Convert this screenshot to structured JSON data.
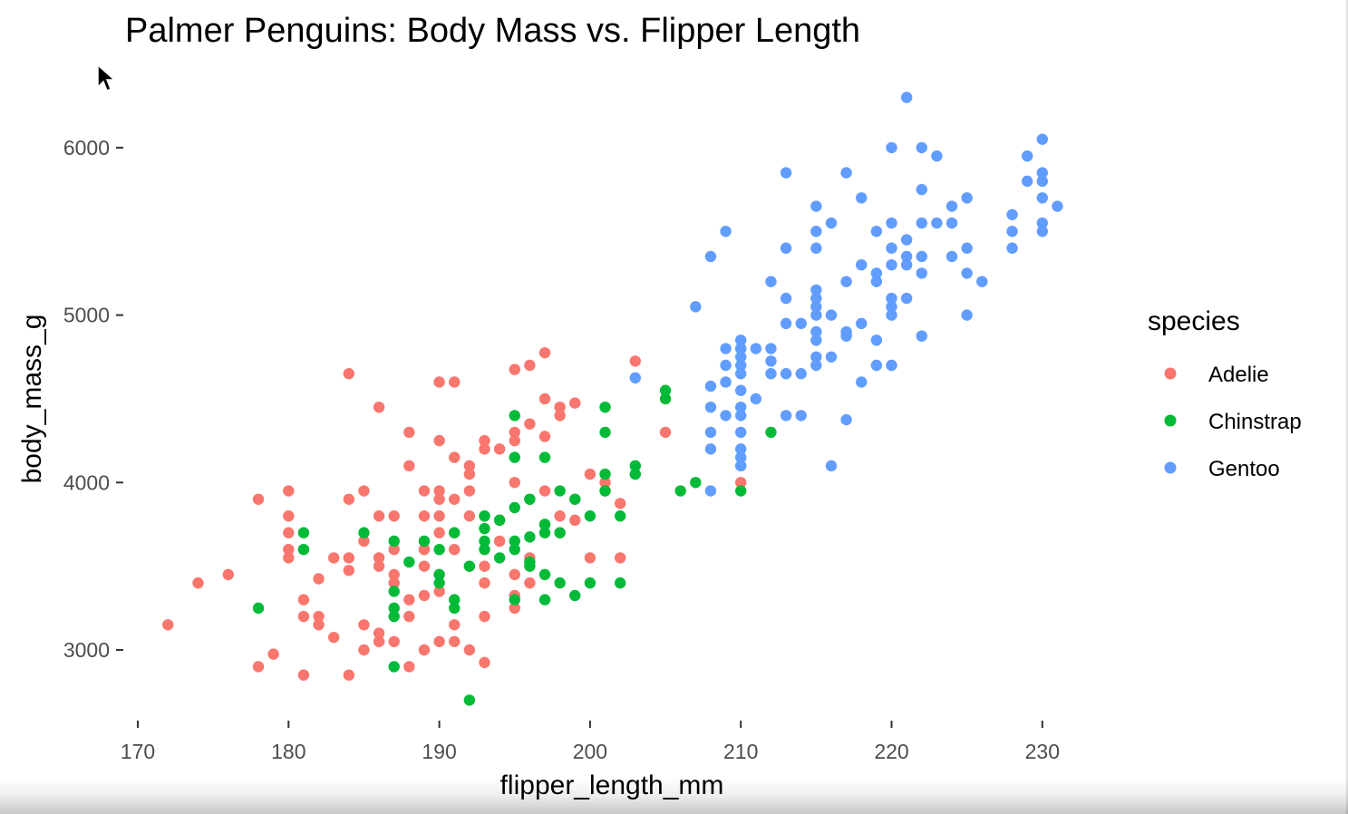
{
  "chart_data": {
    "type": "scatter",
    "title": "Palmer Penguins: Body Mass vs. Flipper Length",
    "xlabel": "flipper_length_mm",
    "ylabel": "body_mass_g",
    "xlim": [
      170,
      232
    ],
    "ylim": [
      2650,
      6350
    ],
    "x_ticks": [
      170,
      180,
      190,
      200,
      210,
      220,
      230
    ],
    "y_ticks": [
      3000,
      4000,
      5000,
      6000
    ],
    "grid": false,
    "legend": {
      "title": "species",
      "position": "right"
    },
    "series": [
      {
        "name": "Adelie",
        "color": "#F8766D",
        "points": [
          [
            172,
            3150
          ],
          [
            174,
            3400
          ],
          [
            176,
            3450
          ],
          [
            178,
            3900
          ],
          [
            178,
            2900
          ],
          [
            179,
            2975
          ],
          [
            180,
            3950
          ],
          [
            180,
            3800
          ],
          [
            180,
            3700
          ],
          [
            180,
            3600
          ],
          [
            180,
            3550
          ],
          [
            181,
            3300
          ],
          [
            181,
            3200
          ],
          [
            181,
            2850
          ],
          [
            182,
            3425
          ],
          [
            182,
            3200
          ],
          [
            182,
            3150
          ],
          [
            183,
            3550
          ],
          [
            183,
            3075
          ],
          [
            184,
            4650
          ],
          [
            184,
            3900
          ],
          [
            184,
            3550
          ],
          [
            184,
            3475
          ],
          [
            184,
            2850
          ],
          [
            185,
            3950
          ],
          [
            185,
            3650
          ],
          [
            185,
            3150
          ],
          [
            185,
            3000
          ],
          [
            186,
            4450
          ],
          [
            186,
            3800
          ],
          [
            186,
            3550
          ],
          [
            186,
            3500
          ],
          [
            186,
            3100
          ],
          [
            186,
            3050
          ],
          [
            187,
            3800
          ],
          [
            187,
            3600
          ],
          [
            187,
            3450
          ],
          [
            187,
            3400
          ],
          [
            187,
            3050
          ],
          [
            188,
            4300
          ],
          [
            188,
            4100
          ],
          [
            188,
            3300
          ],
          [
            188,
            3200
          ],
          [
            188,
            2900
          ],
          [
            189,
            3950
          ],
          [
            189,
            3800
          ],
          [
            189,
            3600
          ],
          [
            189,
            3500
          ],
          [
            189,
            3325
          ],
          [
            189,
            3000
          ],
          [
            190,
            4600
          ],
          [
            190,
            4250
          ],
          [
            190,
            3950
          ],
          [
            190,
            3900
          ],
          [
            190,
            3800
          ],
          [
            190,
            3700
          ],
          [
            190,
            3450
          ],
          [
            190,
            3350
          ],
          [
            190,
            3050
          ],
          [
            191,
            4600
          ],
          [
            191,
            4150
          ],
          [
            191,
            3900
          ],
          [
            191,
            3700
          ],
          [
            191,
            3600
          ],
          [
            191,
            3150
          ],
          [
            191,
            3050
          ],
          [
            192,
            4100
          ],
          [
            192,
            4050
          ],
          [
            192,
            3950
          ],
          [
            192,
            3800
          ],
          [
            192,
            3500
          ],
          [
            192,
            3000
          ],
          [
            193,
            4250
          ],
          [
            193,
            4200
          ],
          [
            193,
            3800
          ],
          [
            193,
            3500
          ],
          [
            193,
            3400
          ],
          [
            193,
            3200
          ],
          [
            193,
            2925
          ],
          [
            194,
            4200
          ],
          [
            194,
            3775
          ],
          [
            194,
            3650
          ],
          [
            195,
            4675
          ],
          [
            195,
            4300
          ],
          [
            195,
            4250
          ],
          [
            195,
            4000
          ],
          [
            195,
            3450
          ],
          [
            195,
            3325
          ],
          [
            195,
            3250
          ],
          [
            196,
            4700
          ],
          [
            196,
            4350
          ],
          [
            196,
            3900
          ],
          [
            196,
            3550
          ],
          [
            196,
            3400
          ],
          [
            197,
            4775
          ],
          [
            197,
            4500
          ],
          [
            197,
            4275
          ],
          [
            197,
            3950
          ],
          [
            197,
            3750
          ],
          [
            198,
            4450
          ],
          [
            198,
            4400
          ],
          [
            198,
            3800
          ],
          [
            198,
            3700
          ],
          [
            199,
            4475
          ],
          [
            199,
            3900
          ],
          [
            199,
            3775
          ],
          [
            200,
            4050
          ],
          [
            200,
            3550
          ],
          [
            201,
            4000
          ],
          [
            201,
            3950
          ],
          [
            202,
            3875
          ],
          [
            202,
            3550
          ],
          [
            203,
            4725
          ],
          [
            205,
            4300
          ],
          [
            210,
            4000
          ]
        ]
      },
      {
        "name": "Chinstrap",
        "color": "#00BA38",
        "points": [
          [
            178,
            3250
          ],
          [
            181,
            3700
          ],
          [
            181,
            3600
          ],
          [
            185,
            3700
          ],
          [
            187,
            3650
          ],
          [
            187,
            3350
          ],
          [
            187,
            3250
          ],
          [
            187,
            3200
          ],
          [
            187,
            2900
          ],
          [
            188,
            3525
          ],
          [
            189,
            3650
          ],
          [
            190,
            3600
          ],
          [
            190,
            3450
          ],
          [
            190,
            3400
          ],
          [
            191,
            3300
          ],
          [
            191,
            3250
          ],
          [
            191,
            3700
          ],
          [
            192,
            3500
          ],
          [
            192,
            2700
          ],
          [
            193,
            3800
          ],
          [
            193,
            3725
          ],
          [
            193,
            3650
          ],
          [
            193,
            3600
          ],
          [
            194,
            3775
          ],
          [
            194,
            3550
          ],
          [
            195,
            4400
          ],
          [
            195,
            4150
          ],
          [
            195,
            3850
          ],
          [
            195,
            3650
          ],
          [
            195,
            3600
          ],
          [
            195,
            3300
          ],
          [
            196,
            3900
          ],
          [
            196,
            3675
          ],
          [
            196,
            3525
          ],
          [
            196,
            3500
          ],
          [
            197,
            4150
          ],
          [
            197,
            3750
          ],
          [
            197,
            3700
          ],
          [
            197,
            3450
          ],
          [
            197,
            3300
          ],
          [
            198,
            3950
          ],
          [
            198,
            3700
          ],
          [
            198,
            3400
          ],
          [
            199,
            3900
          ],
          [
            199,
            3325
          ],
          [
            200,
            3800
          ],
          [
            200,
            3400
          ],
          [
            201,
            4450
          ],
          [
            201,
            4300
          ],
          [
            201,
            4050
          ],
          [
            201,
            3950
          ],
          [
            202,
            3800
          ],
          [
            202,
            3400
          ],
          [
            203,
            4100
          ],
          [
            203,
            4050
          ],
          [
            205,
            4550
          ],
          [
            205,
            4500
          ],
          [
            206,
            3950
          ],
          [
            207,
            4000
          ],
          [
            210,
            4800
          ],
          [
            210,
            4100
          ],
          [
            210,
            3950
          ],
          [
            212,
            4300
          ]
        ]
      },
      {
        "name": "Gentoo",
        "color": "#619CFF",
        "points": [
          [
            203,
            4625
          ],
          [
            207,
            5050
          ],
          [
            208,
            5350
          ],
          [
            208,
            4575
          ],
          [
            208,
            4450
          ],
          [
            208,
            4300
          ],
          [
            208,
            4200
          ],
          [
            208,
            3950
          ],
          [
            209,
            5500
          ],
          [
            209,
            4800
          ],
          [
            209,
            4700
          ],
          [
            209,
            4600
          ],
          [
            209,
            4400
          ],
          [
            210,
            4850
          ],
          [
            210,
            4800
          ],
          [
            210,
            4750
          ],
          [
            210,
            4700
          ],
          [
            210,
            4650
          ],
          [
            210,
            4550
          ],
          [
            210,
            4450
          ],
          [
            210,
            4400
          ],
          [
            210,
            4300
          ],
          [
            210,
            4200
          ],
          [
            210,
            4150
          ],
          [
            210,
            4100
          ],
          [
            211,
            4800
          ],
          [
            211,
            4500
          ],
          [
            212,
            5200
          ],
          [
            212,
            4800
          ],
          [
            212,
            4725
          ],
          [
            212,
            4650
          ],
          [
            213,
            5850
          ],
          [
            213,
            5400
          ],
          [
            213,
            5100
          ],
          [
            213,
            4950
          ],
          [
            213,
            4650
          ],
          [
            213,
            4400
          ],
          [
            214,
            4950
          ],
          [
            214,
            4650
          ],
          [
            214,
            4400
          ],
          [
            215,
            5650
          ],
          [
            215,
            5500
          ],
          [
            215,
            5400
          ],
          [
            215,
            5150
          ],
          [
            215,
            5100
          ],
          [
            215,
            5050
          ],
          [
            215,
            5000
          ],
          [
            215,
            4900
          ],
          [
            215,
            4850
          ],
          [
            215,
            4750
          ],
          [
            215,
            4700
          ],
          [
            216,
            5550
          ],
          [
            216,
            5000
          ],
          [
            216,
            4750
          ],
          [
            216,
            4100
          ],
          [
            217,
            5850
          ],
          [
            217,
            5200
          ],
          [
            217,
            4900
          ],
          [
            217,
            4875
          ],
          [
            217,
            4375
          ],
          [
            218,
            5700
          ],
          [
            218,
            5300
          ],
          [
            218,
            4950
          ],
          [
            218,
            4600
          ],
          [
            219,
            5500
          ],
          [
            219,
            5250
          ],
          [
            219,
            5200
          ],
          [
            219,
            4850
          ],
          [
            219,
            4700
          ],
          [
            220,
            6000
          ],
          [
            220,
            5550
          ],
          [
            220,
            5400
          ],
          [
            220,
            5300
          ],
          [
            220,
            5100
          ],
          [
            220,
            5050
          ],
          [
            220,
            5000
          ],
          [
            220,
            4700
          ],
          [
            221,
            6300
          ],
          [
            221,
            5450
          ],
          [
            221,
            5350
          ],
          [
            221,
            5300
          ],
          [
            221,
            5100
          ],
          [
            222,
            6000
          ],
          [
            222,
            5750
          ],
          [
            222,
            5550
          ],
          [
            222,
            5350
          ],
          [
            222,
            5250
          ],
          [
            222,
            4875
          ],
          [
            223,
            5950
          ],
          [
            223,
            5550
          ],
          [
            224,
            5550
          ],
          [
            224,
            5350
          ],
          [
            224,
            5650
          ],
          [
            225,
            5700
          ],
          [
            225,
            5400
          ],
          [
            225,
            5250
          ],
          [
            225,
            5000
          ],
          [
            226,
            5200
          ],
          [
            228,
            5600
          ],
          [
            228,
            5500
          ],
          [
            228,
            5400
          ],
          [
            229,
            5950
          ],
          [
            229,
            5800
          ],
          [
            230,
            6050
          ],
          [
            230,
            5850
          ],
          [
            230,
            5800
          ],
          [
            230,
            5700
          ],
          [
            230,
            5550
          ],
          [
            230,
            5500
          ],
          [
            231,
            5650
          ]
        ]
      }
    ]
  }
}
